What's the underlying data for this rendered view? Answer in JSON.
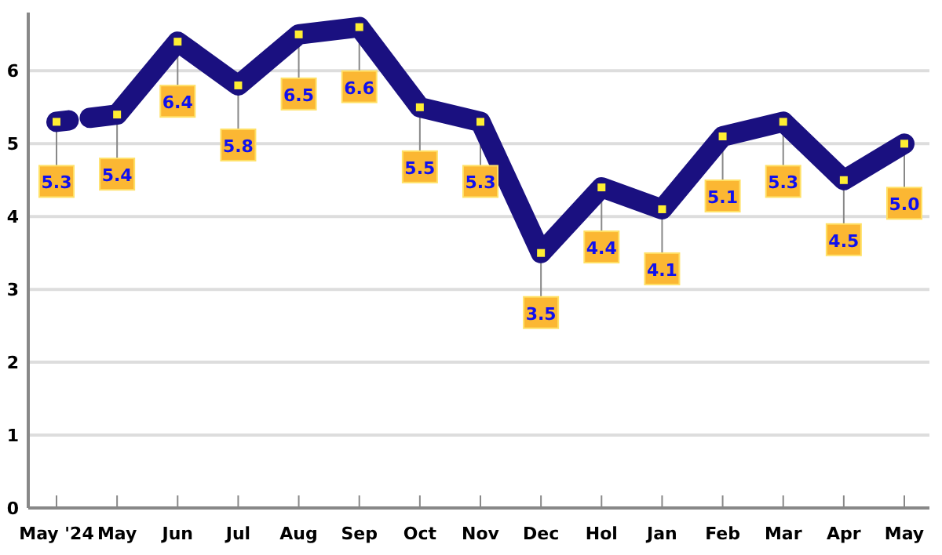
{
  "chart_data": {
    "type": "line",
    "categories": [
      "May '24",
      "May",
      "Jun",
      "Jul",
      "Aug",
      "Sep",
      "Oct",
      "Nov",
      "Dec",
      "Hol",
      "Jan",
      "Feb",
      "Mar",
      "Apr",
      "May"
    ],
    "series": [
      {
        "color": "#1a1080",
        "values": [
          5.3,
          5.4,
          6.4,
          5.8,
          6.5,
          6.6,
          5.5,
          5.3,
          3.5,
          4.4,
          4.1,
          5.1,
          5.3,
          4.5,
          5.0
        ],
        "value_labels": [
          "5.3",
          "5.4",
          "6.4",
          "5.8",
          "6.5",
          "6.6",
          "5.5",
          "5.3",
          "3.5",
          "4.4",
          "4.1",
          "5.1",
          "5.3",
          "4.5",
          "5.0"
        ]
      }
    ],
    "ylim": [
      0,
      6.8
    ],
    "yticks": [
      0,
      1,
      2,
      3,
      4,
      5,
      6
    ],
    "grid": "y",
    "marker": "square"
  }
}
